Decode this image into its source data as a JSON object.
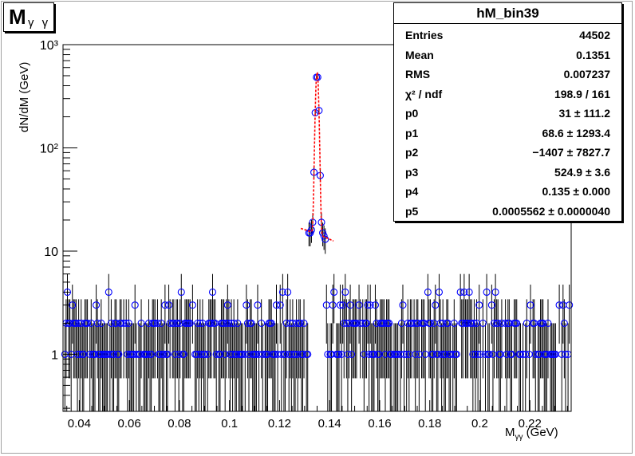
{
  "title_box": {
    "main": "M",
    "sub": "γ γ"
  },
  "stats": {
    "name": "hM_bin39",
    "rows": [
      {
        "k": "Entries",
        "v": "44502"
      },
      {
        "k": "Mean",
        "v": "0.1351"
      },
      {
        "k": "RMS",
        "v": "0.007237"
      },
      {
        "k": "χ² / ndf",
        "v": "198.9 / 161"
      },
      {
        "k": "p0",
        "v": "31 ± 111.2"
      },
      {
        "k": "p1",
        "v": "68.6 ± 1293.4"
      },
      {
        "k": "p2",
        "v": "−1407 ± 7827.7"
      },
      {
        "k": "p3",
        "v": "524.9 ± 3.6"
      },
      {
        "k": "p4",
        "v": "0.135 ± 0.000"
      },
      {
        "k": "p5",
        "v": "0.0005562 ± 0.0000040"
      }
    ]
  },
  "axes": {
    "ylabel": "dN/dM (GeV)",
    "xlabel": "M",
    "xlabel_sub": "γγ",
    "xlabel_unit": "(GeV)"
  },
  "chart_data": {
    "type": "scatter",
    "xlim": [
      0.0335,
      0.2365
    ],
    "ylim": [
      0.28,
      1000
    ],
    "yscale": "log",
    "x_ticks": [
      "0.04",
      "0.06",
      "0.08",
      "0.1",
      "0.12",
      "0.14",
      "0.16",
      "0.18",
      "0.2",
      "0.22"
    ],
    "y_ticks": [
      "1",
      "10",
      "10²",
      "10³"
    ],
    "marker_color": "#0000ff",
    "fit_color": "#ff0000",
    "fit_params": {
      "p0": 31,
      "p1": 68.6,
      "p2": -1407,
      "p3": 524.9,
      "p4": 0.135,
      "p5": 0.0005562
    },
    "bin_width": 0.0005,
    "background_levels": [
      1,
      2,
      3,
      4
    ]
  }
}
